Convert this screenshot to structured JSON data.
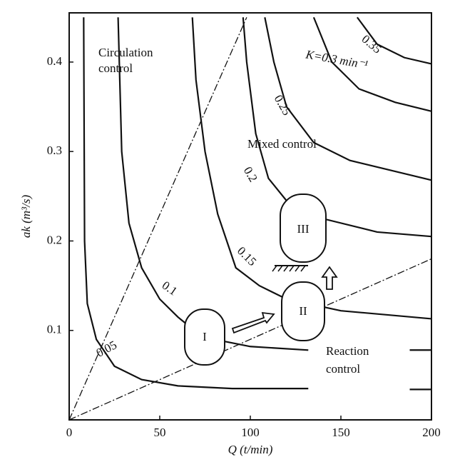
{
  "chart_data": {
    "type": "line",
    "xlabel": "Q (t/min)",
    "ylabel": "ak (m³/s)",
    "xlim": [
      0,
      200
    ],
    "ylim": [
      0,
      0.455
    ],
    "xticks": [
      0,
      50,
      100,
      150,
      200
    ],
    "yticks": [
      0.1,
      0.2,
      0.3,
      0.4
    ],
    "series": [
      {
        "name": "0.05",
        "color": "#111111",
        "x": [
          8,
          8.5,
          10,
          15,
          25,
          40,
          60,
          90,
          132,
          160,
          188,
          200
        ],
        "values": [
          0.45,
          0.2,
          0.13,
          0.09,
          0.06,
          0.045,
          0.038,
          0.035,
          0.035,
          null,
          0.034,
          0.034
        ]
      },
      {
        "name": "0.1",
        "color": "#111111",
        "x": [
          27,
          29,
          33,
          40,
          50,
          60,
          66,
          80,
          100,
          132,
          160,
          188,
          200
        ],
        "values": [
          0.45,
          0.3,
          0.22,
          0.17,
          0.135,
          0.115,
          0.105,
          0.09,
          0.082,
          0.078,
          null,
          0.078,
          0.078
        ]
      },
      {
        "name": "0.15",
        "color": "#111111",
        "x": [
          68,
          70,
          75,
          82,
          92,
          105,
          120,
          150,
          200
        ],
        "values": [
          0.45,
          0.38,
          0.3,
          0.23,
          0.17,
          0.15,
          0.135,
          0.122,
          0.113
        ]
      },
      {
        "name": "0.2",
        "color": "#111111",
        "x": [
          96,
          98,
          103,
          110,
          120,
          140,
          170,
          200
        ],
        "values": [
          0.45,
          0.4,
          0.32,
          0.27,
          0.245,
          0.225,
          0.21,
          0.205
        ]
      },
      {
        "name": "0.25",
        "color": "#111111",
        "x": [
          108,
          113,
          120,
          135,
          155,
          200
        ],
        "values": [
          0.45,
          0.4,
          0.35,
          0.31,
          0.29,
          0.268
        ]
      },
      {
        "name": "K=0.3 min⁻¹",
        "color": "#111111",
        "x": [
          135,
          145,
          160,
          180,
          200
        ],
        "values": [
          0.45,
          0.4,
          0.37,
          0.355,
          0.345
        ]
      },
      {
        "name": "0.35",
        "color": "#111111",
        "x": [
          159,
          170,
          185,
          200
        ],
        "values": [
          0.45,
          0.42,
          0.405,
          0.398
        ]
      }
    ],
    "boundary_lines": [
      {
        "x": [
          0,
          98
        ],
        "values": [
          0,
          0.45
        ]
      },
      {
        "x": [
          0,
          200
        ],
        "values": [
          0,
          0.18
        ]
      }
    ],
    "annotations": {
      "circulation_control": [
        "Circulation",
        "control"
      ],
      "mixed_control": "Mixed control",
      "reaction_control": [
        "Reaction",
        "control"
      ],
      "region_1": "I",
      "region_2": "II",
      "region_3": "III"
    }
  }
}
